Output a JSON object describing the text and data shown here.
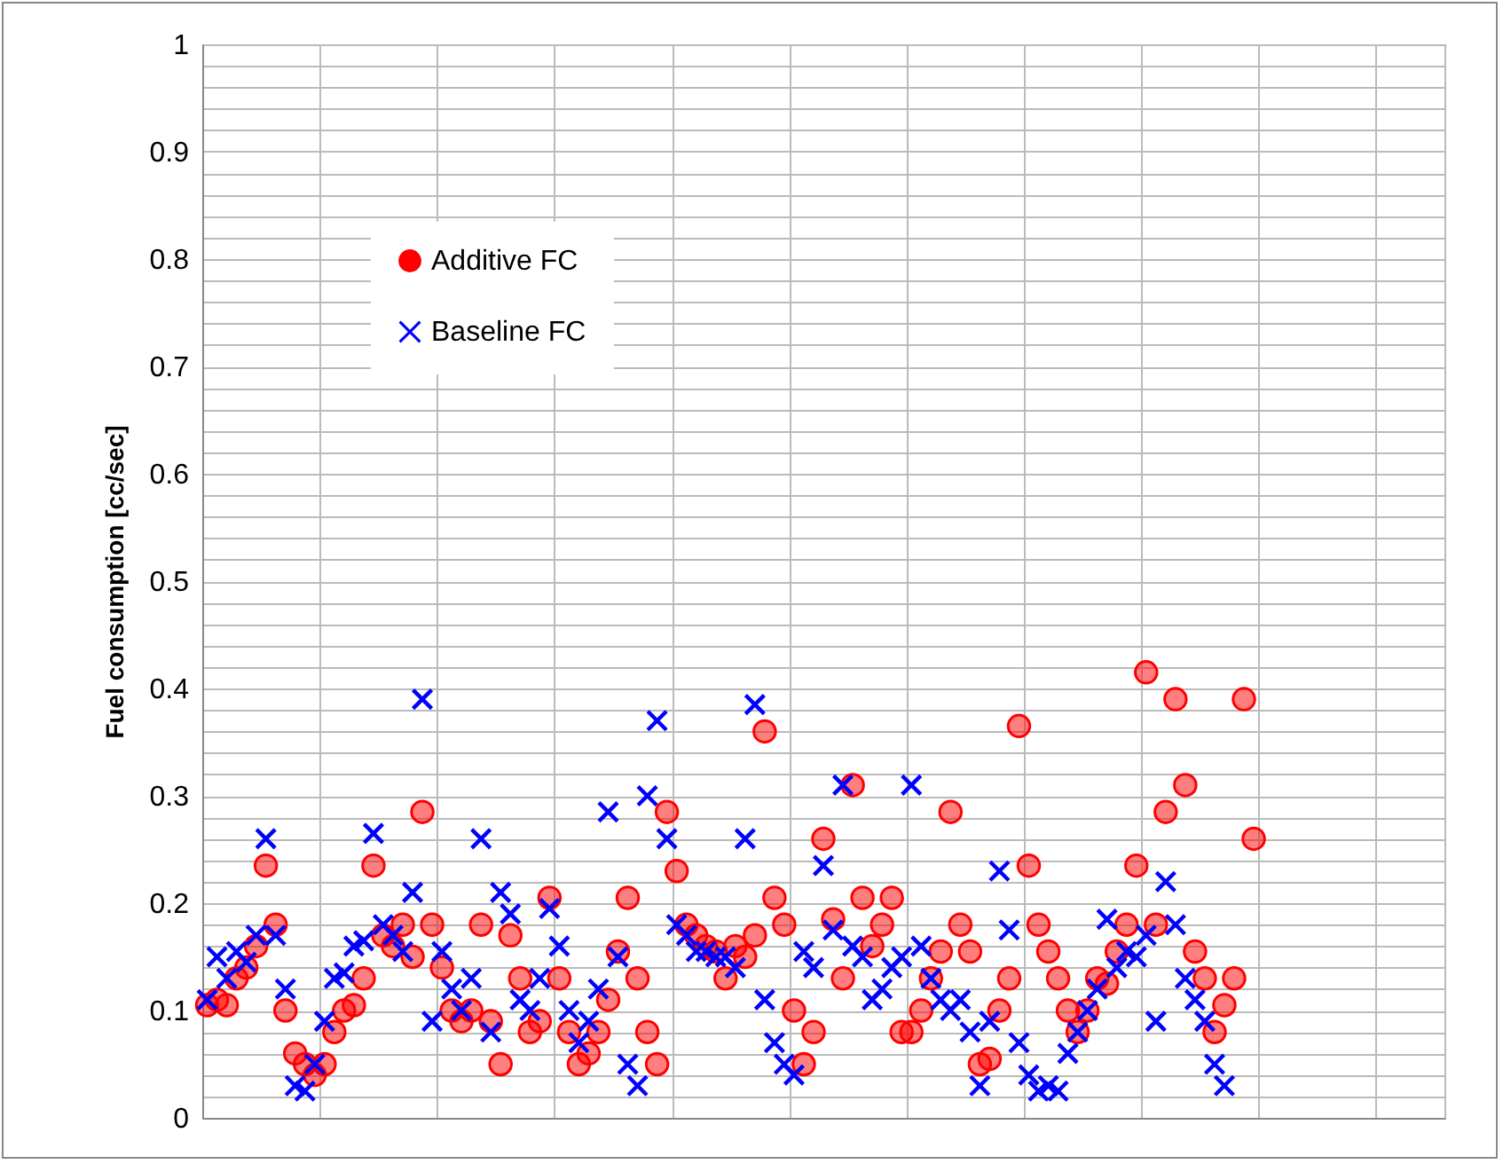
{
  "chart_data": {
    "type": "scatter",
    "ylabel": "Fuel consumption [cc/sec]",
    "categories": [
      null,
      null,
      null,
      null,
      null,
      null,
      null,
      null,
      null,
      null,
      null,
      null,
      null,
      null,
      null,
      null,
      null,
      null,
      null,
      null,
      null,
      null,
      null,
      null,
      null,
      null,
      null,
      null,
      null,
      null,
      null,
      null,
      null,
      null,
      null,
      null,
      null,
      null,
      null,
      null,
      null,
      null,
      null,
      null,
      null,
      null,
      null,
      null,
      null,
      null,
      null,
      null,
      null,
      null,
      null,
      null,
      null,
      null,
      null,
      null,
      null,
      null,
      null,
      null,
      null,
      null,
      null,
      null,
      null,
      null,
      null,
      null,
      null,
      null,
      null,
      null,
      null,
      null,
      null,
      null,
      null,
      null,
      null,
      null,
      null,
      null,
      null,
      null,
      null,
      null,
      null,
      null,
      null,
      null,
      null,
      null,
      null,
      null,
      null,
      null,
      null,
      null,
      null,
      null,
      null,
      null,
      null,
      null,
      null,
      null,
      null,
      null,
      null,
      null,
      null,
      null,
      null,
      null,
      null,
      null,
      null,
      null,
      null,
      null,
      null,
      null,
      null
    ],
    "series": [
      {
        "name": "Additive FC",
        "color": "#ff0000",
        "marker": "circle",
        "values": [
          0.105,
          0.11,
          0.105,
          0.13,
          0.14,
          0.16,
          0.235,
          0.18,
          0.1,
          0.06,
          0.05,
          0.04,
          0.05,
          0.08,
          0.1,
          0.105,
          0.13,
          0.235,
          0.17,
          0.16,
          0.18,
          0.15,
          0.285,
          0.18,
          0.14,
          0.1,
          0.09,
          0.1,
          0.18,
          0.09,
          0.05,
          0.17,
          0.13,
          0.08,
          0.09,
          0.205,
          0.13,
          0.08,
          0.05,
          0.06,
          0.08,
          0.11,
          0.155,
          0.205,
          0.13,
          0.08,
          0.05,
          0.285,
          0.23,
          0.18,
          0.17,
          0.16,
          0.155,
          0.13,
          0.16,
          0.15,
          0.17,
          0.36,
          0.205,
          0.18,
          0.1,
          0.05,
          0.08,
          0.26,
          0.185,
          0.13,
          0.31,
          0.205,
          0.16,
          0.18,
          0.205,
          0.08,
          0.08,
          0.1,
          0.13,
          0.155,
          0.285,
          0.18,
          0.155,
          0.05,
          0.055,
          0.1,
          0.13,
          0.365,
          0.235,
          0.18,
          0.155,
          0.13,
          0.1,
          0.08,
          0.1,
          0.13,
          0.125,
          0.155,
          0.18,
          0.235,
          0.415,
          0.18,
          0.285,
          0.39,
          0.31,
          0.155,
          0.13,
          0.08,
          0.105,
          0.13,
          0.39,
          0.26,
          null,
          null,
          null,
          null,
          null,
          null,
          null,
          null,
          null,
          null,
          null,
          null,
          null,
          null,
          null,
          null,
          null,
          null,
          null
        ]
      },
      {
        "name": "Baseline FC",
        "color": "#0000ff",
        "marker": "cross",
        "values": [
          0.11,
          0.15,
          0.13,
          0.155,
          0.145,
          0.17,
          0.26,
          0.17,
          0.12,
          0.03,
          0.025,
          0.05,
          0.09,
          0.13,
          0.135,
          0.16,
          0.165,
          0.265,
          0.18,
          0.17,
          0.155,
          0.21,
          0.39,
          0.09,
          0.155,
          0.12,
          0.1,
          0.13,
          0.26,
          0.08,
          0.21,
          0.19,
          0.11,
          0.1,
          0.13,
          0.195,
          0.16,
          0.1,
          0.07,
          0.09,
          0.12,
          0.285,
          0.15,
          0.05,
          0.03,
          0.3,
          0.37,
          0.26,
          0.18,
          0.17,
          0.155,
          0.155,
          0.15,
          0.15,
          0.14,
          0.26,
          0.385,
          0.11,
          0.07,
          0.05,
          0.04,
          0.155,
          0.14,
          0.235,
          0.175,
          0.31,
          0.16,
          0.15,
          0.11,
          0.12,
          0.14,
          0.15,
          0.31,
          0.16,
          0.13,
          0.11,
          0.1,
          0.11,
          0.08,
          0.03,
          0.09,
          0.23,
          0.175,
          0.07,
          0.04,
          0.025,
          0.03,
          0.025,
          0.06,
          0.08,
          0.1,
          0.12,
          0.185,
          0.14,
          0.155,
          0.15,
          0.17,
          0.09,
          0.22,
          0.18,
          0.13,
          0.11,
          0.09,
          0.05,
          0.03,
          null,
          null,
          null,
          null,
          null,
          null,
          null,
          null,
          null,
          null,
          null,
          null,
          null,
          null,
          null,
          null,
          null,
          null,
          null,
          null,
          null,
          null
        ]
      }
    ],
    "ylim": [
      0,
      1
    ],
    "yticks": [
      0,
      {
        "value": 0.02,
        "label": null
      },
      {
        "value": 0.04,
        "label": null
      },
      {
        "value": 0.06,
        "label": null
      },
      {
        "value": 0.08,
        "label": null
      },
      0.1,
      {
        "value": 0.12,
        "label": null
      },
      {
        "value": 0.14,
        "label": null
      },
      {
        "value": 0.16,
        "label": null
      },
      {
        "value": 0.18,
        "label": null
      },
      0.2,
      {
        "value": 0.22,
        "label": null
      },
      {
        "value": 0.24,
        "label": null
      },
      {
        "value": 0.26,
        "label": null
      },
      {
        "value": 0.28,
        "label": null
      },
      0.3,
      {
        "value": 0.32,
        "label": null
      },
      {
        "value": 0.34,
        "label": null
      },
      {
        "value": 0.36,
        "label": null
      },
      {
        "value": 0.38,
        "label": null
      },
      0.4,
      {
        "value": 0.42,
        "label": null
      },
      {
        "value": 0.44,
        "label": null
      },
      {
        "value": 0.46,
        "label": null
      },
      {
        "value": 0.48,
        "label": null
      },
      0.5,
      {
        "value": 0.52,
        "label": null
      },
      {
        "value": 0.54,
        "label": null
      },
      {
        "value": 0.56,
        "label": null
      },
      {
        "value": 0.58,
        "label": null
      },
      0.6,
      {
        "value": 0.62,
        "label": null
      },
      {
        "value": 0.64,
        "label": null
      },
      {
        "value": 0.66,
        "label": null
      },
      {
        "value": 0.68,
        "label": null
      },
      0.7,
      {
        "value": 0.72,
        "label": null
      },
      {
        "value": 0.74,
        "label": null
      },
      {
        "value": 0.76,
        "label": null
      },
      {
        "value": 0.78,
        "label": null
      },
      0.8,
      {
        "value": 0.82,
        "label": null
      },
      {
        "value": 0.84,
        "label": null
      },
      {
        "value": 0.86,
        "label": null
      },
      {
        "value": 0.88,
        "label": null
      },
      0.9,
      {
        "value": 0.92,
        "label": null
      },
      {
        "value": 0.94,
        "label": null
      },
      {
        "value": 0.96,
        "label": null
      },
      {
        "value": 0.98,
        "label": null
      },
      1
    ],
    "grid": true,
    "legend": "top left",
    "tick_labels": "y"
  }
}
